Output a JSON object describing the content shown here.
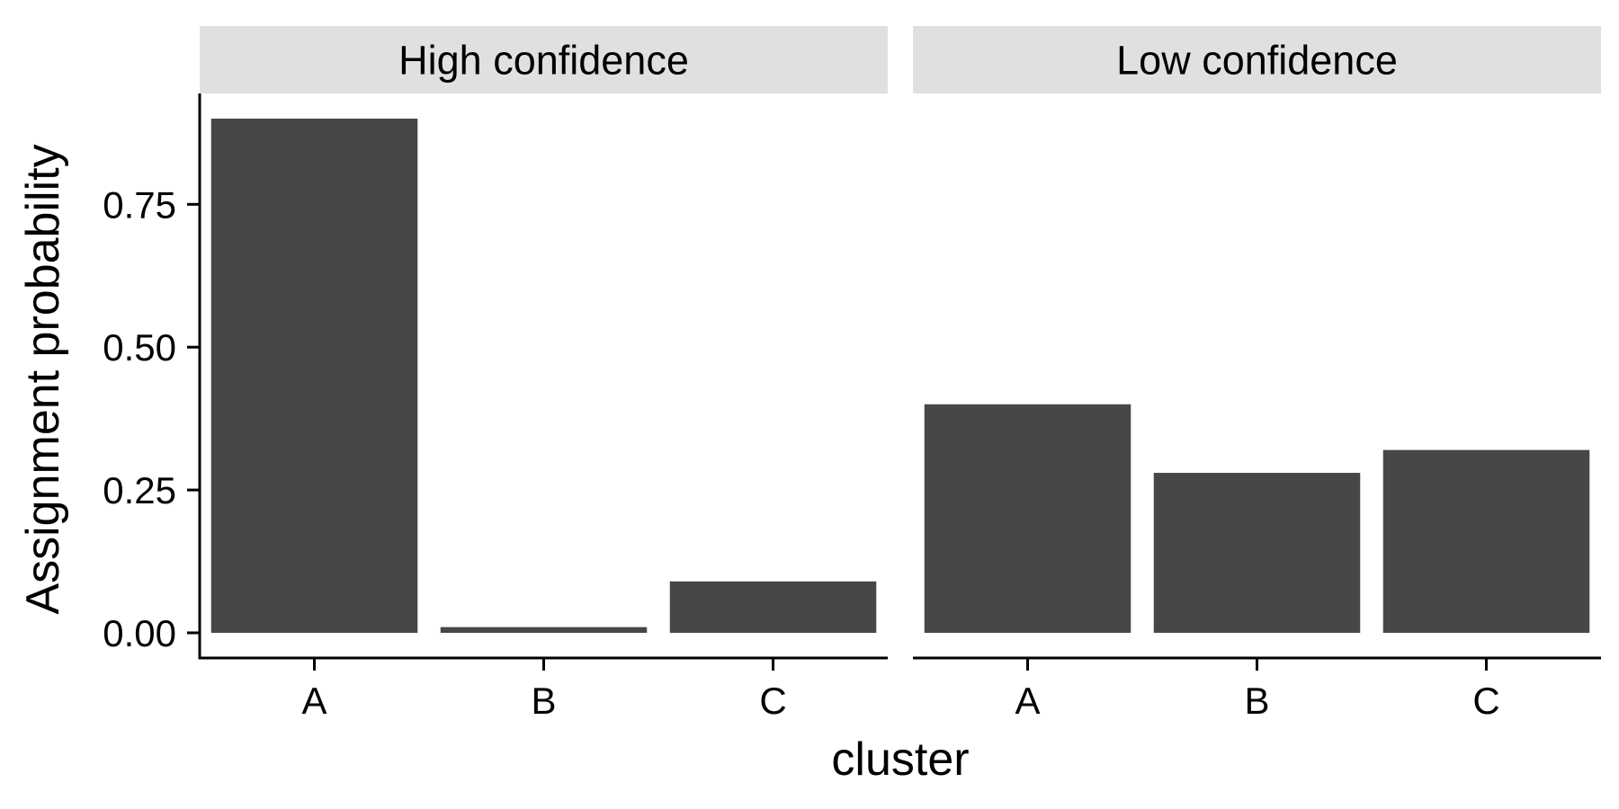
{
  "chart_data": {
    "type": "bar",
    "xlabel": "cluster",
    "ylabel": "Assignment probability",
    "ylim": [
      0,
      0.944
    ],
    "yticks": [
      0,
      0.25,
      0.5,
      0.75
    ],
    "ytick_labels": [
      "0.00",
      "0.25",
      "0.50",
      "0.75"
    ],
    "categories": [
      "A",
      "B",
      "C"
    ],
    "grid": false,
    "bar_color": "#474747",
    "strip_color": "#e0e0e0",
    "panels": [
      {
        "title": "High confidence",
        "values": [
          0.9,
          0.01,
          0.09
        ]
      },
      {
        "title": "Low confidence",
        "values": [
          0.4,
          0.28,
          0.32
        ]
      }
    ]
  }
}
